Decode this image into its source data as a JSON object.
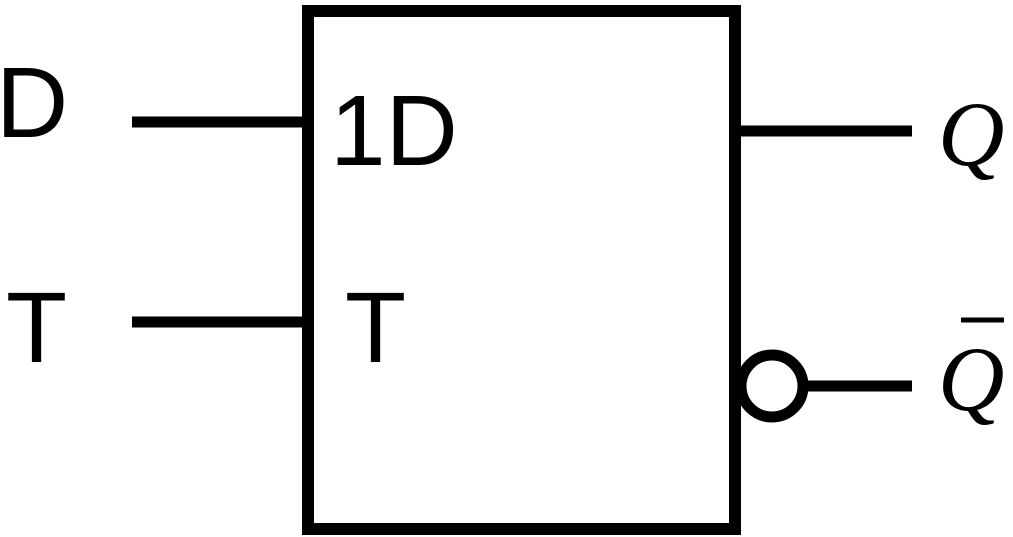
{
  "inputs": {
    "d_pin": "D",
    "t_pin": "T"
  },
  "block": {
    "d_label": "1D",
    "t_label": "T"
  },
  "outputs": {
    "q": "Q",
    "q_bar": "Q"
  },
  "colors": {
    "stroke": "#000000",
    "background": "#ffffff"
  }
}
